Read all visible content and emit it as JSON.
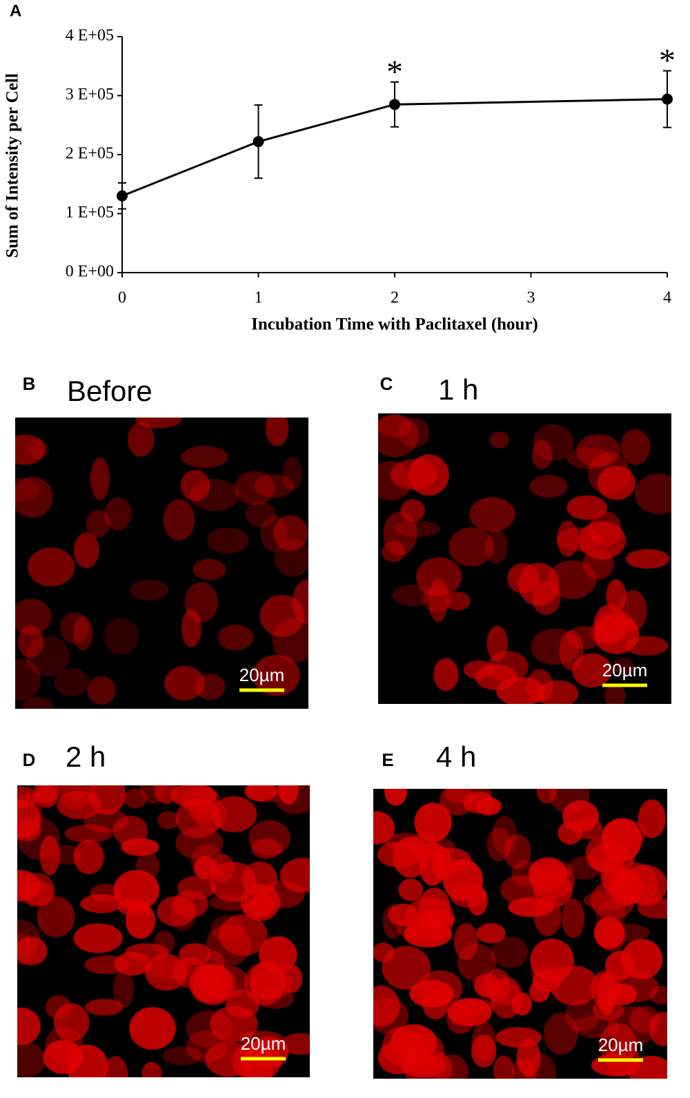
{
  "chart_data": {
    "type": "line",
    "label": "A",
    "ylabel": "Sum of Intensity per Cell",
    "xlabel": "Incubation Time with Paclitaxel (hour)",
    "x": [
      0,
      1,
      2,
      4
    ],
    "series": [
      {
        "color": "#000000",
        "values": [
          130000,
          222000,
          285000,
          294000
        ],
        "errors": [
          22000,
          62000,
          38000,
          48000
        ]
      }
    ],
    "annotations": [
      {
        "x": 2,
        "text": "*"
      },
      {
        "x": 4,
        "text": "*"
      }
    ],
    "xlim": [
      0,
      4
    ],
    "xticks": [
      0,
      1,
      2,
      3,
      4
    ],
    "ylim": [
      0,
      400000
    ],
    "yticks": [
      {
        "value": 0,
        "label": "0 E+00"
      },
      {
        "value": 100000,
        "label": "1 E+05"
      },
      {
        "value": 200000,
        "label": "2 E+05"
      },
      {
        "value": 300000,
        "label": "3 E+05"
      },
      {
        "value": 400000,
        "label": "4 E+05"
      }
    ]
  },
  "panels": [
    {
      "label": "B",
      "title": "Before",
      "scale_bar": "20µm"
    },
    {
      "label": "C",
      "title": "1 h",
      "scale_bar": "20µm"
    },
    {
      "label": "D",
      "title": "2 h",
      "scale_bar": "20µm"
    },
    {
      "label": "E",
      "title": "4 h",
      "scale_bar": "20µm"
    }
  ]
}
